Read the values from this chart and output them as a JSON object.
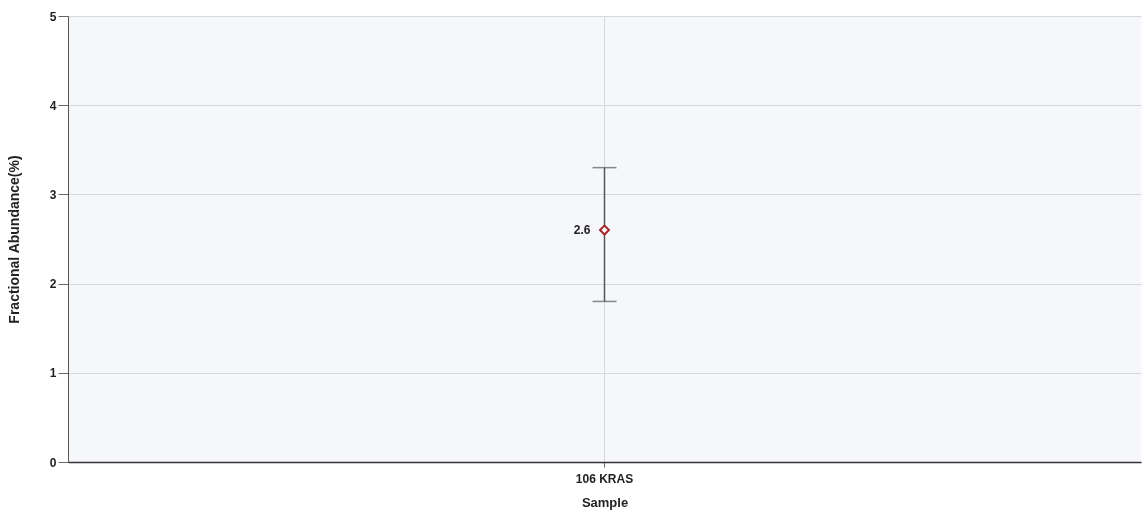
{
  "chart_data": {
    "type": "scatter",
    "xlabel": "Sample",
    "ylabel": "Fractional Abundance(%)",
    "categories": [
      "106 KRAS"
    ],
    "values": [
      2.6
    ],
    "errors": [
      [
        1.8,
        3.3
      ]
    ],
    "color": "#a3262a",
    "ylim": [
      0,
      5
    ],
    "yticks": [
      0,
      1,
      2,
      3,
      4,
      5
    ],
    "grid": true,
    "marker": "diamond",
    "data_labels": true
  }
}
